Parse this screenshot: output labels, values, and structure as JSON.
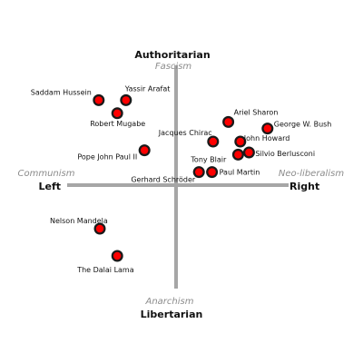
{
  "chart_data": {
    "type": "scatter",
    "title": "",
    "xlabel": "",
    "ylabel": "",
    "xlim": [
      -10,
      10
    ],
    "ylim": [
      -10,
      10
    ],
    "grid": false,
    "legend": "none",
    "axes": {
      "top": {
        "main": "Authoritarian",
        "sub": "Fascism"
      },
      "bottom": {
        "main": "Libertarian",
        "sub": "Anarchism"
      },
      "left": {
        "main": "Left",
        "sub": "Communism"
      },
      "right": {
        "main": "Right",
        "sub": "Neo-liberalism"
      }
    },
    "points": [
      {
        "label": "Saddam Hussein",
        "x": -7.1,
        "y": 7.8
      },
      {
        "label": "Yassir Arafat",
        "x": -4.6,
        "y": 7.8
      },
      {
        "label": "Robert Mugabe",
        "x": -5.4,
        "y": 6.6
      },
      {
        "label": "Pope John Paul II",
        "x": -2.9,
        "y": 3.2
      },
      {
        "label": "Ariel Sharon",
        "x": 4.8,
        "y": 5.8
      },
      {
        "label": "George W. Bush",
        "x": 8.4,
        "y": 5.2
      },
      {
        "label": "Jacques Chirac",
        "x": 3.4,
        "y": 4.0
      },
      {
        "label": "John Howard",
        "x": 5.9,
        "y": 4.0
      },
      {
        "label": "Tony Blair",
        "x": 5.7,
        "y": 2.8
      },
      {
        "label": "Silvio Berlusconi",
        "x": 6.7,
        "y": 3.0
      },
      {
        "label": "Paul Martin",
        "x": 3.3,
        "y": 1.2
      },
      {
        "label": "Gerhard Schröder",
        "x": 2.1,
        "y": 1.2
      },
      {
        "label": "Nelson Mandela",
        "x": -7.0,
        "y": -4.0
      },
      {
        "label": "The Dalai Lama",
        "x": -5.4,
        "y": -6.5
      }
    ]
  },
  "colors": {
    "axis": "#a6a6a6",
    "point_fill": "#ff0000",
    "point_outline": "#1a1a1a",
    "pole_sub_text": "#8c8c8c"
  }
}
